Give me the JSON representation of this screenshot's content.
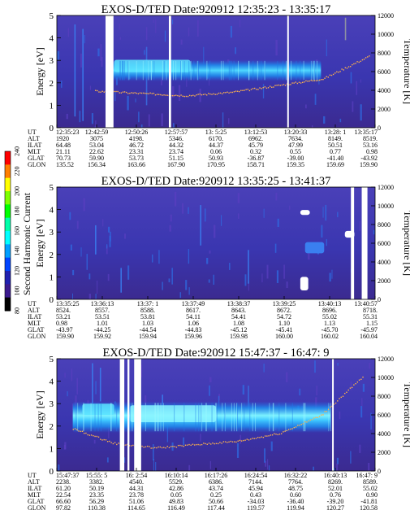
{
  "figure": {
    "colorbar": {
      "label": "Second Harmonic Current",
      "ticks": [
        240,
        220,
        200,
        180,
        160,
        140,
        120,
        100,
        80
      ],
      "range": [
        80,
        240
      ],
      "colors": [
        "#ff0000",
        "#ff7f00",
        "#ffff00",
        "#7fff00",
        "#00ff00",
        "#00ffaa",
        "#00ffff",
        "#009fff",
        "#0044ff",
        "#2020b0",
        "#3b1a8e",
        "#000000"
      ]
    },
    "row_labels": [
      "UT",
      "ALT",
      "ILAT",
      "MLT",
      "GLAT",
      "GLON"
    ]
  },
  "chart_data": [
    {
      "type": "heatmap",
      "title": "EXOS-D/TED   Date:920912  12:35:23 - 13:35:17",
      "ylabel": "Energy [eV]",
      "ylabel_right": "Temperature [K]",
      "ylim": [
        0,
        5
      ],
      "yticks": [
        0,
        1,
        2,
        3,
        4,
        5
      ],
      "ylim_right": [
        0,
        12000
      ],
      "yticks_right": [
        0,
        2000,
        4000,
        6000,
        8000,
        10000,
        12000
      ],
      "columns": [
        {
          "UT": "12:35:23",
          "ALT": "1920",
          "ILAT": "64.48",
          "MLT": "21.11",
          "GLAT": "70.73",
          "GLON": "135.52"
        },
        {
          "UT": "12:42:59",
          "ALT": "3075",
          "ILAT": "53.04",
          "MLT": "22.62",
          "GLAT": "59.90",
          "GLON": "156.34"
        },
        {
          "UT": "12:50:26",
          "ALT": "4198.",
          "ILAT": "46.72",
          "MLT": "23.31",
          "GLAT": "53.73",
          "GLON": "163.66"
        },
        {
          "UT": "12:57:57",
          "ALT": "5346.",
          "ILAT": "44.32",
          "MLT": "23.74",
          "GLAT": "51.15",
          "GLON": "167.90"
        },
        {
          "UT": "13: 5:25",
          "ALT": "6170.",
          "ILAT": "44.37",
          "MLT": "0.06",
          "GLAT": "50.93",
          "GLON": "170.95"
        },
        {
          "UT": "13:12:53",
          "ALT": "6962.",
          "ILAT": "45.79",
          "MLT": "0.32",
          "GLAT": "-36.87",
          "GLON": "158.71"
        },
        {
          "UT": "13:20:33",
          "ALT": "7634.",
          "ILAT": "47.99",
          "MLT": "0.55",
          "GLAT": "-39.00",
          "GLON": "159.35"
        },
        {
          "UT": "13:28: 1",
          "ALT": "8149.",
          "ILAT": "50.51",
          "MLT": "0.77",
          "GLAT": "-41.40",
          "GLON": "159.69"
        },
        {
          "UT": "13:35:17",
          "ALT": "8519.",
          "ILAT": "53.16",
          "MLT": "0.98",
          "GLAT": "-43.92",
          "GLON": "159.90"
        }
      ]
    },
    {
      "type": "heatmap",
      "title": "EXOS-D/TED   Date:920912  13:35:25 - 13:41:37",
      "ylabel": "Energy [eV]",
      "ylabel_right": "Temperature [K]",
      "ylim": [
        0,
        5
      ],
      "yticks": [
        0,
        1,
        2,
        3,
        4,
        5
      ],
      "ylim_right": [
        0,
        12000
      ],
      "yticks_right": [
        0,
        2000,
        4000,
        6000,
        8000,
        10000,
        12000
      ],
      "columns": [
        {
          "UT": "13:35:25",
          "ALT": "8524.",
          "ILAT": "53.21",
          "MLT": "0.98",
          "GLAT": "-43.97",
          "GLON": "159.90"
        },
        {
          "UT": "13:36:13",
          "ALT": "8557.",
          "ILAT": "53.51",
          "MLT": "1.01",
          "GLAT": "-44.25",
          "GLON": "159.92"
        },
        {
          "UT": "13:37: 1",
          "ALT": "8588.",
          "ILAT": "53.81",
          "MLT": "1.03",
          "GLAT": "-44.54",
          "GLON": "159.94"
        },
        {
          "UT": "13:37:49",
          "ALT": "8617.",
          "ILAT": "54.11",
          "MLT": "1.06",
          "GLAT": "-44.83",
          "GLON": "159.96"
        },
        {
          "UT": "13:38:37",
          "ALT": "8643.",
          "ILAT": "54.41",
          "MLT": "1.08",
          "GLAT": "-45.12",
          "GLON": "159.98"
        },
        {
          "UT": "13:39:25",
          "ALT": "8672.",
          "ILAT": "54.72",
          "MLT": "1.10",
          "GLAT": "-45.41",
          "GLON": "160.00"
        },
        {
          "UT": "13:40:13",
          "ALT": "8696.",
          "ILAT": "55.02",
          "MLT": "1.13",
          "GLAT": "-45.70",
          "GLON": "160.02"
        },
        {
          "UT": "13:40:57",
          "ALT": "8718.",
          "ILAT": "55.31",
          "MLT": "1.15",
          "GLAT": "-45.97",
          "GLON": "160.04"
        }
      ]
    },
    {
      "type": "heatmap",
      "title": "EXOS-D/TED   Date:920912  15:47:37 - 16:47: 9",
      "ylabel": "Energy [eV]",
      "ylabel_right": "Temperature [K]",
      "ylim": [
        0,
        5
      ],
      "yticks": [
        0,
        1,
        2,
        3,
        4,
        5
      ],
      "ylim_right": [
        0,
        12000
      ],
      "yticks_right": [
        0,
        2000,
        4000,
        6000,
        8000,
        10000,
        12000
      ],
      "columns": [
        {
          "UT": "15:47:37",
          "ALT": "2238.",
          "ILAT": "61.20",
          "MLT": "22.54",
          "GLAT": "66.60",
          "GLON": "97.82"
        },
        {
          "UT": "15:55: 5",
          "ALT": "3382.",
          "ILAT": "50.19",
          "MLT": "23.35",
          "GLAT": "56.29",
          "GLON": "110.38"
        },
        {
          "UT": "16: 2:54",
          "ALT": "4540.",
          "ILAT": "44.31",
          "MLT": "23.78",
          "GLAT": "51.06",
          "GLON": "114.65"
        },
        {
          "UT": "16:10:14",
          "ALT": "5529.",
          "ILAT": "42.86",
          "MLT": "0.05",
          "GLAT": "49.83",
          "GLON": "116.49"
        },
        {
          "UT": "16:17:26",
          "ALT": "6386.",
          "ILAT": "43.74",
          "MLT": "0.25",
          "GLAT": "50.66",
          "GLON": "117.44"
        },
        {
          "UT": "16:24:54",
          "ALT": "7144.",
          "ILAT": "45.94",
          "MLT": "0.43",
          "GLAT": "-34.03",
          "GLON": "119.57"
        },
        {
          "UT": "16:32:22",
          "ALT": "7764.",
          "ILAT": "48.75",
          "MLT": "0.60",
          "GLAT": "-36.40",
          "GLON": "119.94"
        },
        {
          "UT": "16:40:13",
          "ALT": "8269.",
          "ILAT": "52.01",
          "MLT": "0.76",
          "GLAT": "-39.20",
          "GLON": "120.27"
        },
        {
          "UT": "16:47: 9",
          "ALT": "8589.",
          "ILAT": "55.02",
          "MLT": "0.90",
          "GLAT": "-41.81",
          "GLON": "120.58"
        }
      ]
    }
  ]
}
